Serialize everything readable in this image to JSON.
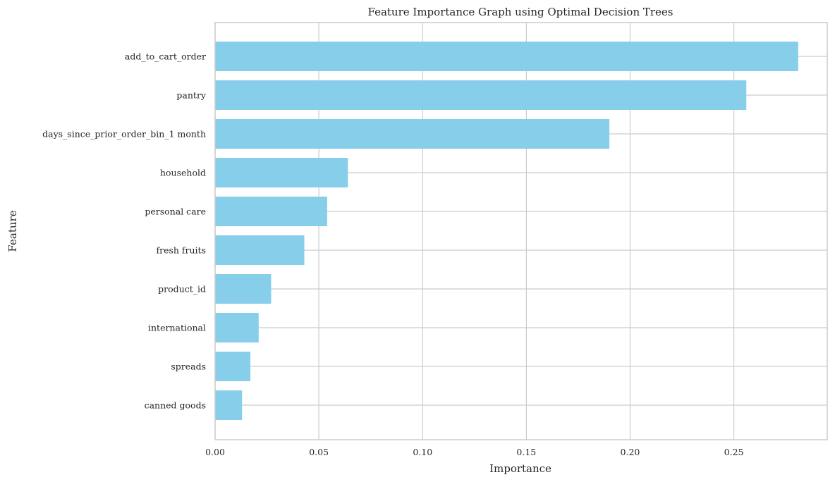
{
  "chart_data": {
    "type": "bar",
    "orientation": "horizontal",
    "title": "Feature Importance Graph  using Optimal Decision Trees",
    "xlabel": "Importance",
    "ylabel": "Feature",
    "categories": [
      "add_to_cart_order",
      "pantry",
      "days_since_prior_order_bin_1 month",
      "household",
      "personal care",
      "fresh fruits",
      "product_id",
      "international",
      "spreads",
      "canned goods"
    ],
    "values": [
      0.281,
      0.256,
      0.19,
      0.064,
      0.054,
      0.043,
      0.027,
      0.021,
      0.017,
      0.013
    ],
    "xlim": [
      0,
      0.295
    ],
    "xticks": [
      0.0,
      0.05,
      0.1,
      0.15,
      0.2,
      0.25
    ],
    "xtick_labels": [
      "0.00",
      "0.05",
      "0.10",
      "0.15",
      "0.20",
      "0.25"
    ],
    "bar_color": "#87CEEB",
    "grid": true
  }
}
